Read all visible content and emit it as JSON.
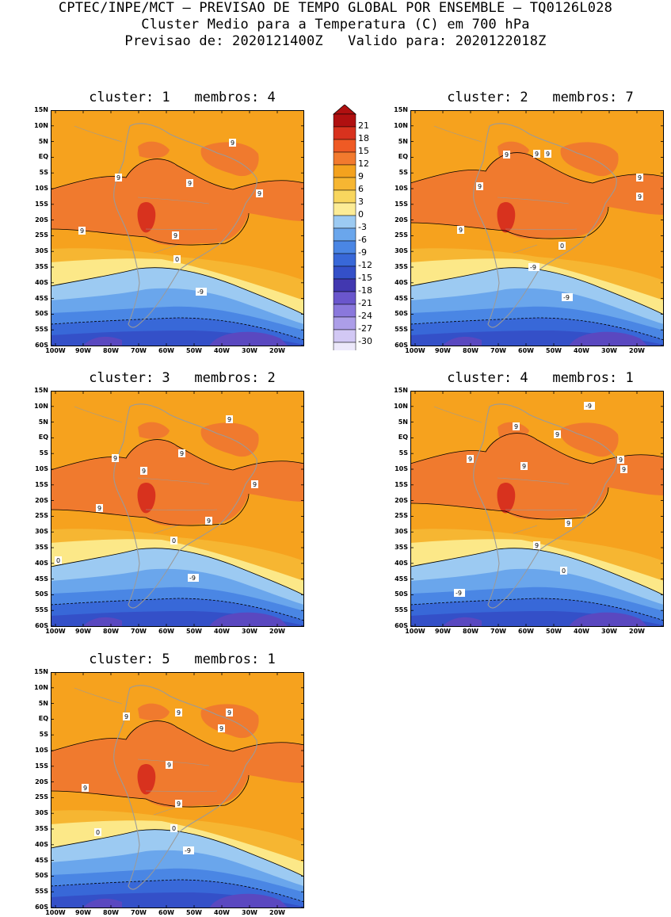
{
  "header": {
    "line1": "CPTEC/INPE/MCT – PREVISAO DE TEMPO GLOBAL POR ENSEMBLE – TQ0126L028",
    "line2": "Cluster Medio para a Temperatura (C) em 700 hPa",
    "line3": "Previsao de: 2020121400Z   Valido para: 2020122018Z"
  },
  "lat_labels": [
    "15N",
    "10N",
    "5N",
    "EQ",
    "5S",
    "10S",
    "15S",
    "20S",
    "25S",
    "30S",
    "35S",
    "40S",
    "45S",
    "50S",
    "55S",
    "60S"
  ],
  "lon_labels": [
    "100W",
    "90W",
    "80W",
    "70W",
    "60W",
    "50W",
    "40W",
    "30W",
    "20W"
  ],
  "colorbar": {
    "labels": [
      "21",
      "18",
      "15",
      "12",
      "9",
      "6",
      "3",
      "0",
      "-3",
      "-6",
      "-9",
      "-12",
      "-15",
      "-18",
      "-21",
      "-24",
      "-27",
      "-30"
    ],
    "colors": [
      "#b01010",
      "#d8321e",
      "#ef5a24",
      "#f27a2e",
      "#f4a21e",
      "#f6b632",
      "#f8d65e",
      "#fcec96",
      "#9ccaf2",
      "#6aa6ec",
      "#4a86e4",
      "#3868d8",
      "#3450c8",
      "#4238b0",
      "#6a56cc",
      "#8a78dc",
      "#ac9ee8",
      "#d2c8f4",
      "#ece8fa"
    ],
    "top_arrow_color": "#b01010",
    "bottom_arrow_color": "#ece8fa"
  },
  "palette": {
    "ocean_orange": "#f6a21e",
    "deep_orange": "#f07a2e",
    "red": "#d8321e",
    "light_orange": "#f6b632",
    "yellow": "#fce888",
    "light_blue": "#9ccaf2",
    "blue": "#6aa6ec",
    "mid_blue": "#4a86e4",
    "dark_blue": "#3868d8",
    "navy": "#3450c8",
    "purple": "#5a48c0",
    "land": "#9a9a9a"
  },
  "panels": [
    {
      "title": "cluster: 1   membros: 4",
      "labels": [
        "9",
        "9",
        "9",
        "9",
        "9",
        "9",
        "0",
        "-9"
      ]
    },
    {
      "title": "cluster: 2   membros: 7",
      "labels": [
        "9",
        "9",
        "9",
        "9",
        "9",
        "9",
        "9",
        "0",
        "-9",
        "-9"
      ]
    },
    {
      "title": "cluster: 3   membros: 2",
      "labels": [
        "9",
        "9",
        "9",
        "9",
        "9",
        "9",
        "9",
        "0",
        "0",
        "-9"
      ]
    },
    {
      "title": "cluster: 4   membros: 1",
      "labels": [
        "9",
        "9",
        "9",
        "9",
        "9",
        "9",
        "9",
        "9",
        "0",
        "-9",
        "-9"
      ]
    },
    {
      "title": "cluster: 5   membros: 1",
      "labels": [
        "9",
        "9",
        "9",
        "9",
        "9",
        "9",
        "9",
        "0",
        "0",
        "-9"
      ]
    }
  ]
}
